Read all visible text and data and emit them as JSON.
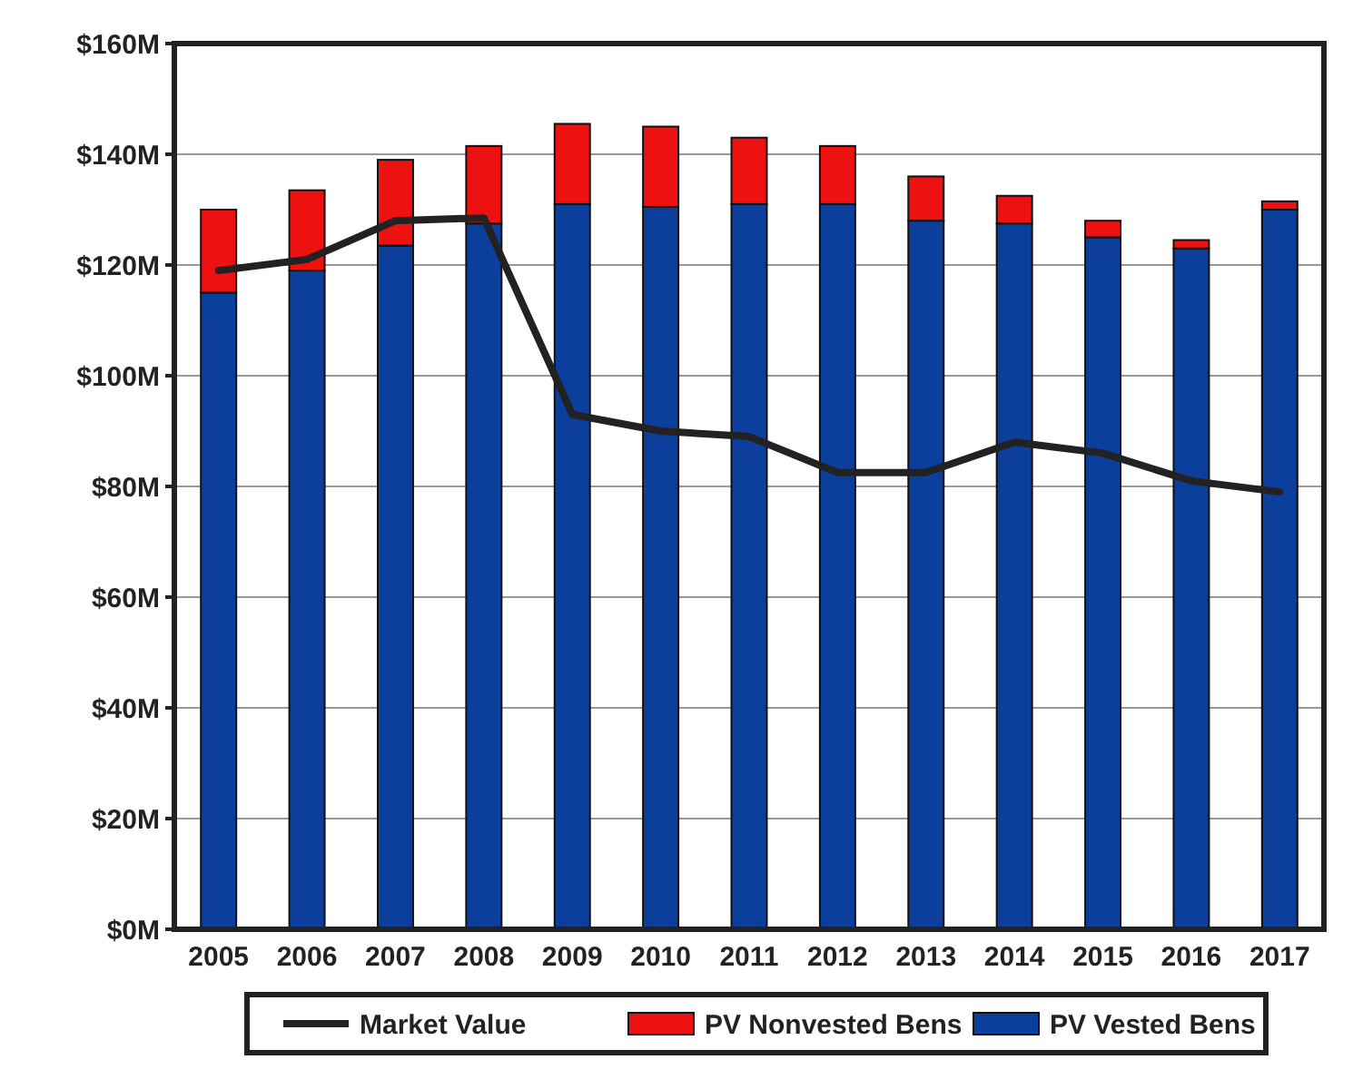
{
  "chart_data": {
    "type": "bar",
    "stacked": true,
    "categories": [
      "2005",
      "2006",
      "2007",
      "2008",
      "2009",
      "2010",
      "2011",
      "2012",
      "2013",
      "2014",
      "2015",
      "2016",
      "2017"
    ],
    "series": [
      {
        "name": "PV Vested Bens",
        "color": "#0c3f9c",
        "values": [
          115,
          119,
          123.5,
          127.5,
          131,
          130.5,
          131,
          131,
          128,
          127.5,
          125,
          123,
          130
        ]
      },
      {
        "name": "PV Nonvested Bens",
        "color": "#ee1111",
        "values": [
          15,
          14.5,
          15.5,
          14,
          14.5,
          14.5,
          12,
          10.5,
          8,
          5,
          3,
          1.5,
          1.5
        ]
      },
      {
        "name": "Market Value",
        "type": "line",
        "color": "#222222",
        "values": [
          119,
          121,
          128,
          128.5,
          93,
          90,
          89,
          82.5,
          82.5,
          88,
          86,
          81,
          79
        ]
      }
    ],
    "ylim": [
      0,
      160
    ],
    "yticks": [
      {
        "value": 0,
        "label": "$0M"
      },
      {
        "value": 20,
        "label": "$20M"
      },
      {
        "value": 40,
        "label": "$40M"
      },
      {
        "value": 60,
        "label": "$60M"
      },
      {
        "value": 80,
        "label": "$80M"
      },
      {
        "value": 100,
        "label": "$100M"
      },
      {
        "value": 120,
        "label": "$120M"
      },
      {
        "value": 140,
        "label": "$140M"
      },
      {
        "value": 160,
        "label": "$160M"
      }
    ],
    "grid": "y",
    "legend": "bottom"
  }
}
